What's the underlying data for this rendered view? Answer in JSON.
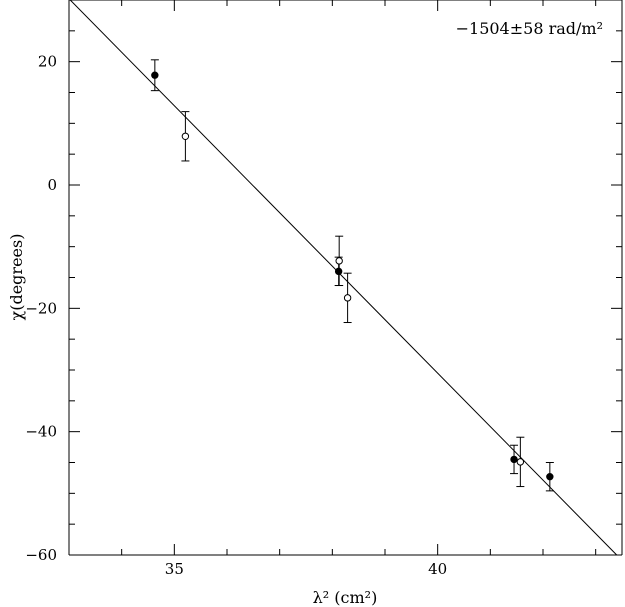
{
  "chart_data": {
    "type": "scatter",
    "title": "",
    "xlabel": "λ² (cm²)",
    "ylabel": "χ(degrees)",
    "xlim": [
      33.0,
      43.5
    ],
    "ylim": [
      -60,
      30
    ],
    "x_major_ticks": [
      35,
      40
    ],
    "x_minor_step": 1,
    "y_major_ticks": [
      -60,
      -40,
      -20,
      0,
      20
    ],
    "y_minor_step": 5,
    "grid": false,
    "annotation": "−1504±58 rad/m²",
    "fit_line": {
      "x": [
        33.0,
        43.4
      ],
      "y": [
        30.2,
        -60.0
      ]
    },
    "series": [
      {
        "marker": "filled",
        "points": [
          {
            "x": 34.63,
            "y": 17.8,
            "err": 2.5
          },
          {
            "x": 38.12,
            "y": -14.0,
            "err": 2.3
          },
          {
            "x": 41.45,
            "y": -44.5,
            "err": 2.3
          },
          {
            "x": 42.13,
            "y": -47.3,
            "err": 2.3
          }
        ]
      },
      {
        "marker": "open",
        "points": [
          {
            "x": 35.21,
            "y": 7.9,
            "err": 4.0
          },
          {
            "x": 38.13,
            "y": -12.3,
            "err": 4.0
          },
          {
            "x": 38.29,
            "y": -18.3,
            "err": 4.0
          },
          {
            "x": 41.57,
            "y": -44.9,
            "err": 4.0
          }
        ]
      }
    ]
  }
}
